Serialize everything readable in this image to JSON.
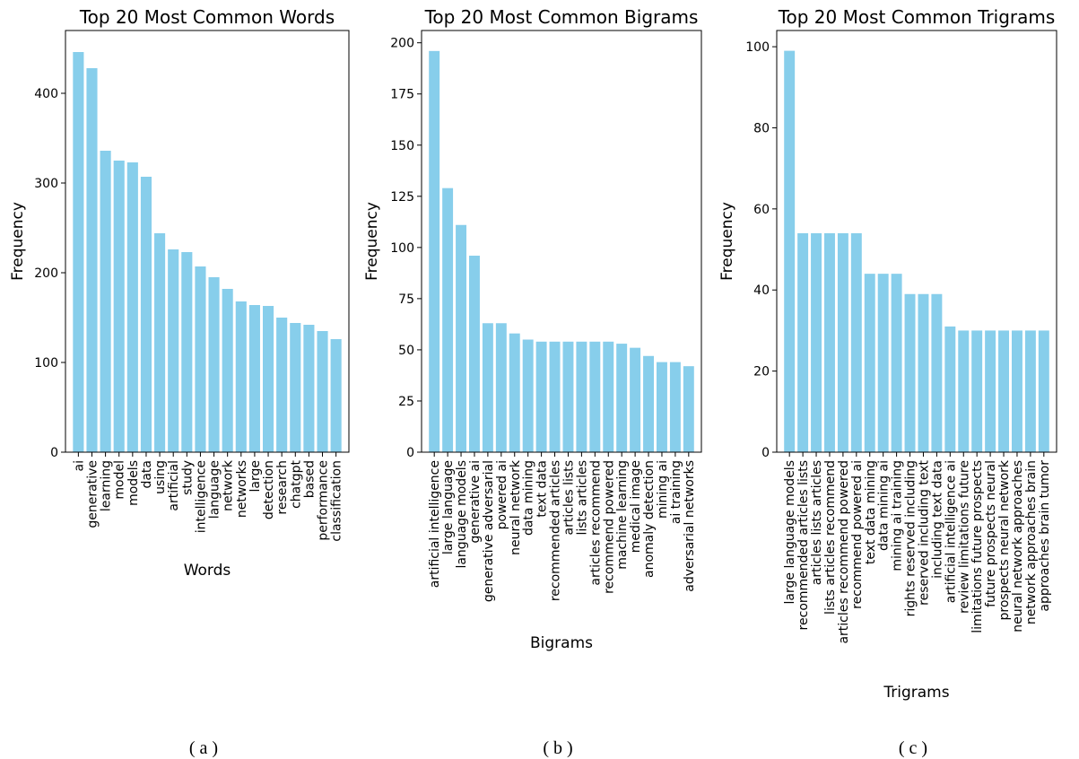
{
  "chart_data": [
    {
      "type": "bar",
      "title": "Top 20 Most Common Words",
      "xlabel": "Words",
      "ylabel": "Frequency",
      "caption": "( a )",
      "color": "#87ceeb",
      "ylim": [
        0,
        470
      ],
      "yticks": [
        0,
        100,
        200,
        300,
        400
      ],
      "categories": [
        "ai",
        "generative",
        "learning",
        "model",
        "models",
        "data",
        "using",
        "artificial",
        "study",
        "intelligence",
        "language",
        "network",
        "networks",
        "large",
        "detection",
        "research",
        "chatgpt",
        "based",
        "performance",
        "classification"
      ],
      "values": [
        446,
        428,
        336,
        325,
        323,
        307,
        244,
        226,
        223,
        207,
        195,
        182,
        168,
        164,
        163,
        150,
        144,
        142,
        135,
        126
      ]
    },
    {
      "type": "bar",
      "title": "Top 20 Most Common Bigrams",
      "xlabel": "Bigrams",
      "ylabel": "Frequency",
      "caption": "( b )",
      "color": "#87ceeb",
      "ylim": [
        0,
        206
      ],
      "yticks": [
        0,
        25,
        50,
        75,
        100,
        125,
        150,
        175,
        200
      ],
      "categories": [
        "artificial intelligence",
        "large language",
        "language models",
        "generative ai",
        "generative adversarial",
        "powered ai",
        "neural network",
        "data mining",
        "text data",
        "recommended articles",
        "articles lists",
        "lists articles",
        "articles recommend",
        "recommend powered",
        "machine learning",
        "medical image",
        "anomaly detection",
        "mining ai",
        "ai training",
        "adversarial networks"
      ],
      "values": [
        196,
        129,
        111,
        96,
        63,
        63,
        58,
        55,
        54,
        54,
        54,
        54,
        54,
        54,
        53,
        51,
        47,
        44,
        44,
        42
      ]
    },
    {
      "type": "bar",
      "title": "Top 20 Most Common Trigrams",
      "xlabel": "Trigrams",
      "ylabel": "Frequency",
      "caption": "( c )",
      "color": "#87ceeb",
      "ylim": [
        0,
        104
      ],
      "yticks": [
        0,
        20,
        40,
        60,
        80,
        100
      ],
      "categories": [
        "large language models",
        "recommended articles lists",
        "articles lists articles",
        "lists articles recommend",
        "articles recommend powered",
        "recommend powered ai",
        "text data mining",
        "data mining ai",
        "mining ai training",
        "rights reserved including",
        "reserved including text",
        "including text data",
        "artificial intelligence ai",
        "review limitations future",
        "limitations future prospects",
        "future prospects neural",
        "prospects neural network",
        "neural network approaches",
        "network approaches brain",
        "approaches brain tumor"
      ],
      "values": [
        99,
        54,
        54,
        54,
        54,
        54,
        44,
        44,
        44,
        39,
        39,
        39,
        31,
        30,
        30,
        30,
        30,
        30,
        30,
        30
      ]
    }
  ]
}
